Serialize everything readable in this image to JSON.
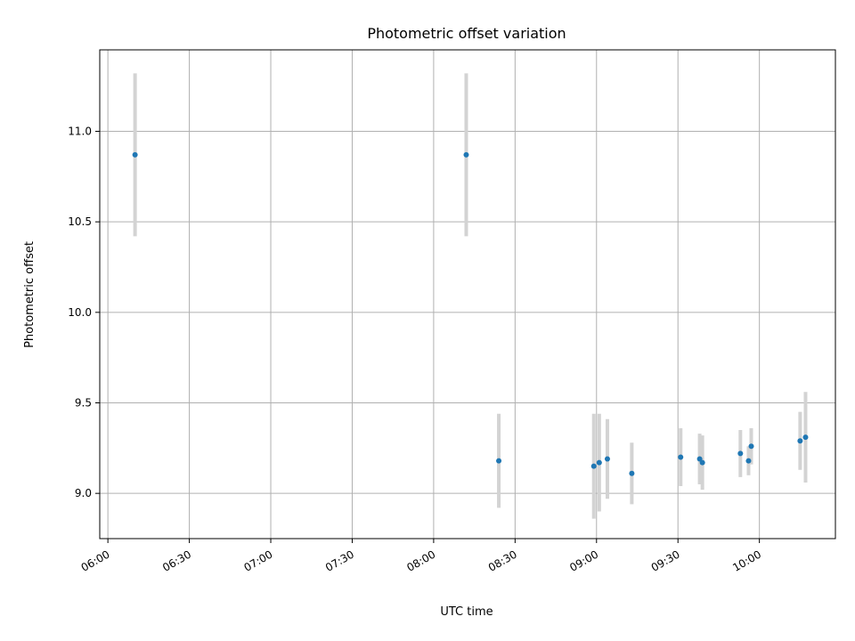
{
  "chart_data": {
    "type": "scatter",
    "title": "Photometric offset variation",
    "xlabel": "UTC time",
    "ylabel": "Photometric offset",
    "x_tick_labels": [
      "06:00",
      "06:30",
      "07:00",
      "07:30",
      "08:00",
      "08:30",
      "09:00",
      "09:30",
      "10:00"
    ],
    "x_ticks": [
      "06:00",
      "06:30",
      "07:00",
      "07:30",
      "08:00",
      "08:30",
      "09:00",
      "09:30",
      "10:00"
    ],
    "y_tick_labels": [
      "9.0",
      "9.5",
      "10.0",
      "10.5",
      "11.0"
    ],
    "y_ticks": [
      9.0,
      9.5,
      10.0,
      10.5,
      11.0
    ],
    "xlim": [
      "05:57",
      "10:28"
    ],
    "ylim": [
      8.75,
      11.45
    ],
    "grid": true,
    "series": [
      {
        "color": "#1f77b4",
        "error_bar_color": "#d3d3d3",
        "points": [
          {
            "x": "06:10",
            "y": 10.87,
            "err": 0.45
          },
          {
            "x": "08:12",
            "y": 10.87,
            "err": 0.45
          },
          {
            "x": "08:24",
            "y": 9.18,
            "err": 0.26
          },
          {
            "x": "08:59",
            "y": 9.15,
            "err": 0.29
          },
          {
            "x": "09:01",
            "y": 9.17,
            "err": 0.27
          },
          {
            "x": "09:04",
            "y": 9.19,
            "err": 0.22
          },
          {
            "x": "09:13",
            "y": 9.11,
            "err": 0.17
          },
          {
            "x": "09:31",
            "y": 9.2,
            "err": 0.16
          },
          {
            "x": "09:38",
            "y": 9.19,
            "err": 0.14
          },
          {
            "x": "09:39",
            "y": 9.17,
            "err": 0.15
          },
          {
            "x": "09:53",
            "y": 9.22,
            "err": 0.13
          },
          {
            "x": "09:56",
            "y": 9.18,
            "err": 0.08
          },
          {
            "x": "09:57",
            "y": 9.26,
            "err": 0.1
          },
          {
            "x": "10:15",
            "y": 9.29,
            "err": 0.16
          },
          {
            "x": "10:17",
            "y": 9.31,
            "err": 0.25
          }
        ]
      }
    ]
  }
}
